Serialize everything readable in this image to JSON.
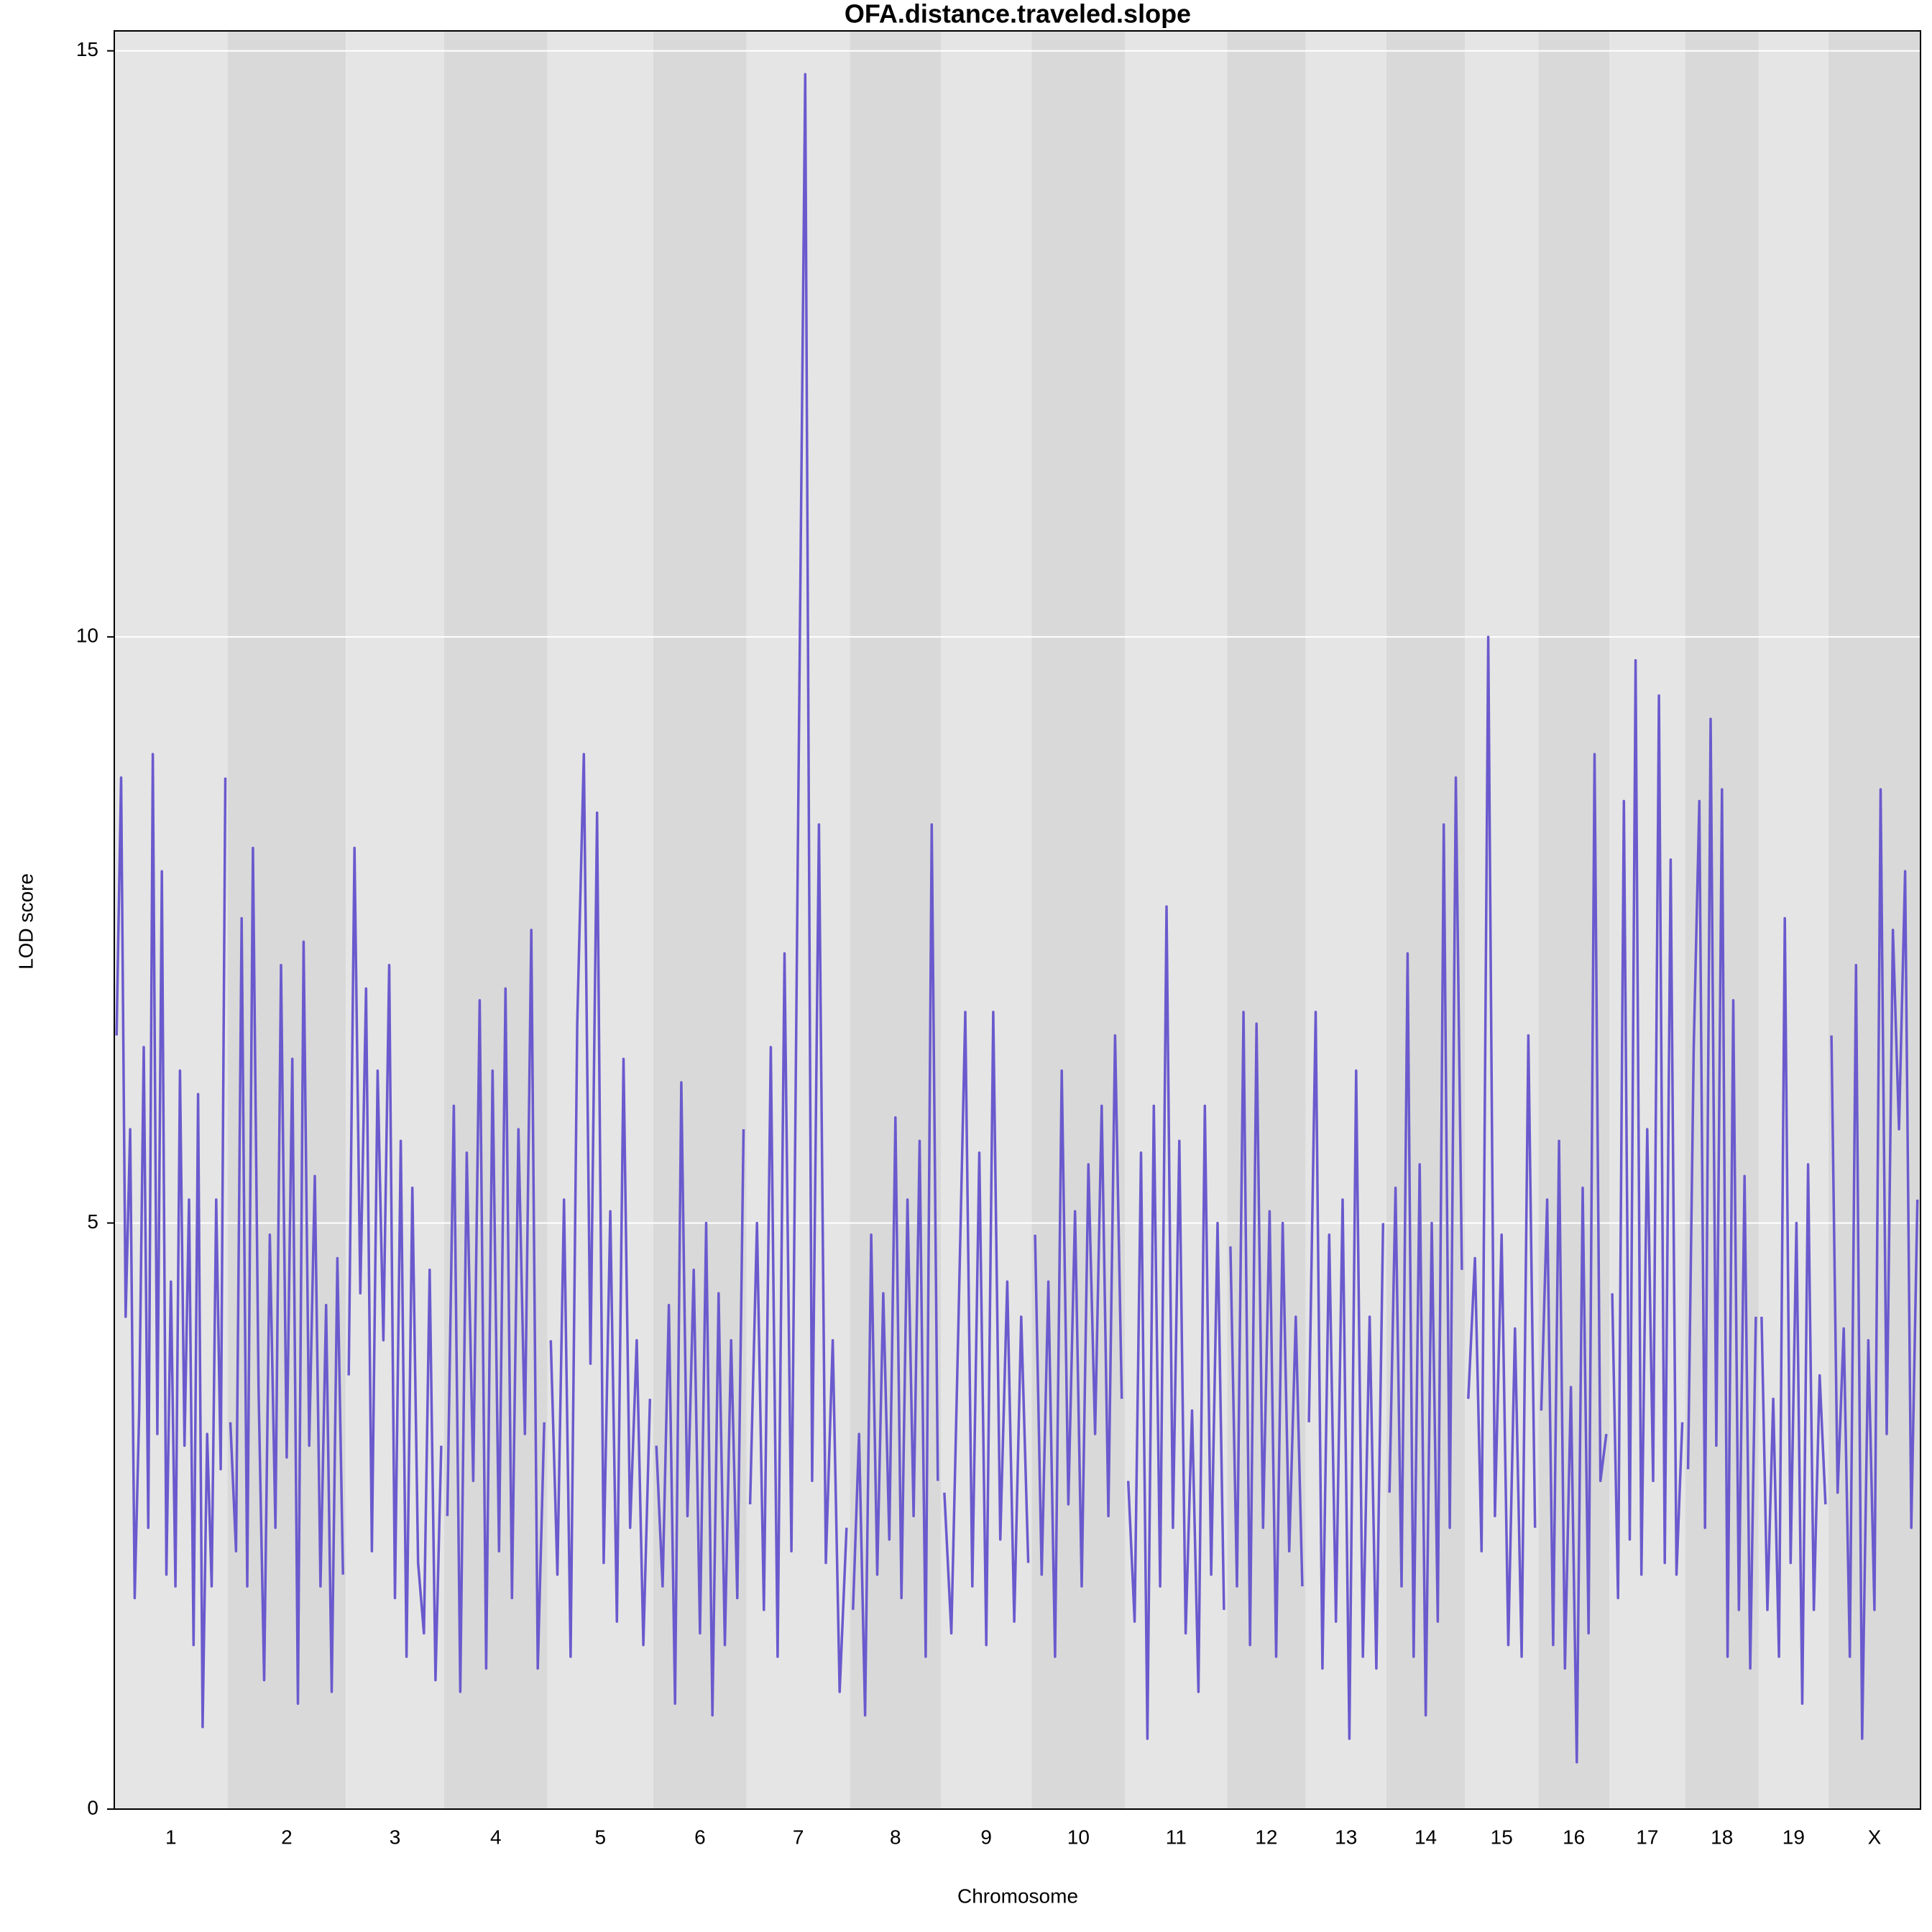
{
  "chart_data": {
    "type": "line",
    "title": "OFA.distance.traveled.slope",
    "xlabel": "Chromosome",
    "ylabel": "LOD score",
    "color": "#6a5acd",
    "band_colors": [
      "#e5e5e5",
      "#d9d9d9"
    ],
    "grid_color": "#ffffff",
    "ylim": [
      0,
      15.17
    ],
    "yticks": [
      0,
      5,
      10,
      15
    ],
    "grid": true,
    "series": [
      {
        "name": "1",
        "length": 91,
        "values": [
          6.6,
          8.8,
          4.2,
          5.8,
          1.8,
          3.4,
          6.5,
          2.4,
          9.0,
          3.2,
          8.0,
          2.0,
          4.5,
          1.9,
          6.3,
          3.1,
          5.2,
          1.4,
          6.1,
          0.7,
          3.2,
          1.9,
          5.2,
          2.9,
          8.8
        ]
      },
      {
        "name": "2",
        "length": 95,
        "values": [
          3.3,
          2.2,
          7.6,
          1.9,
          8.2,
          3.6,
          1.1,
          4.9,
          2.4,
          7.2,
          3.0,
          6.4,
          0.9,
          7.4,
          3.1,
          5.4,
          1.9,
          4.3,
          1.0,
          4.7,
          2.0
        ]
      },
      {
        "name": "3",
        "length": 79,
        "values": [
          3.7,
          8.2,
          4.4,
          7.0,
          2.2,
          6.3,
          4.0,
          7.2,
          1.8,
          5.7,
          1.3,
          5.3,
          2.1,
          1.5,
          4.6,
          1.1,
          3.1
        ]
      },
      {
        "name": "4",
        "length": 83,
        "values": [
          2.5,
          6.0,
          1.0,
          5.6,
          2.8,
          6.9,
          1.2,
          6.3,
          2.2,
          7.0,
          1.8,
          5.8,
          3.2,
          7.5,
          1.2,
          3.3
        ]
      },
      {
        "name": "5",
        "length": 85,
        "values": [
          4.0,
          2.0,
          5.2,
          1.3,
          6.7,
          9.0,
          3.8,
          8.5,
          2.1,
          5.1,
          1.6,
          6.4,
          2.4,
          4.0,
          1.4,
          3.5
        ]
      },
      {
        "name": "6",
        "length": 75,
        "values": [
          3.1,
          1.9,
          4.3,
          0.9,
          6.2,
          2.5,
          4.6,
          1.5,
          5.0,
          0.8,
          4.4,
          1.4,
          4.0,
          1.8,
          5.8
        ]
      },
      {
        "name": "7",
        "length": 83,
        "values": [
          2.6,
          5.0,
          1.7,
          6.5,
          1.3,
          7.3,
          2.2,
          8.6,
          14.8,
          2.8,
          8.4,
          2.1,
          4.0,
          1.0,
          2.4
        ]
      },
      {
        "name": "8",
        "length": 73,
        "values": [
          1.7,
          3.2,
          0.8,
          4.9,
          2.0,
          4.4,
          2.3,
          5.9,
          1.8,
          5.2,
          2.5,
          5.7,
          1.3,
          8.4,
          2.8
        ]
      },
      {
        "name": "9",
        "length": 73,
        "values": [
          2.7,
          1.5,
          4.1,
          6.8,
          1.9,
          5.6,
          1.4,
          6.8,
          2.3,
          4.5,
          1.6,
          4.2,
          2.1
        ]
      },
      {
        "name": "10",
        "length": 75,
        "values": [
          4.9,
          2.0,
          4.5,
          1.3,
          6.3,
          2.6,
          5.1,
          1.9,
          5.5,
          3.2,
          6.0,
          2.5,
          6.6,
          3.5
        ]
      },
      {
        "name": "11",
        "length": 82,
        "values": [
          2.8,
          1.6,
          5.6,
          0.6,
          6.0,
          1.9,
          7.7,
          2.4,
          5.7,
          1.5,
          3.4,
          1.0,
          6.0,
          2.0,
          5.0,
          1.7
        ]
      },
      {
        "name": "12",
        "length": 63,
        "values": [
          4.8,
          1.9,
          6.8,
          1.4,
          6.7,
          2.4,
          5.1,
          1.3,
          5.0,
          2.2,
          4.2,
          1.9
        ]
      },
      {
        "name": "13",
        "length": 65,
        "values": [
          3.3,
          6.8,
          1.2,
          4.9,
          1.6,
          5.2,
          0.6,
          6.3,
          1.3,
          4.2,
          1.2,
          5.0
        ]
      },
      {
        "name": "14",
        "length": 63,
        "values": [
          2.7,
          5.3,
          1.9,
          7.3,
          1.3,
          5.5,
          0.8,
          5.0,
          1.6,
          8.4,
          2.4,
          8.8,
          4.6
        ]
      },
      {
        "name": "15",
        "length": 59,
        "values": [
          3.5,
          4.7,
          2.2,
          10.0,
          2.5,
          4.9,
          1.4,
          4.1,
          1.3,
          6.6,
          2.4
        ]
      },
      {
        "name": "16",
        "length": 57,
        "values": [
          3.4,
          5.2,
          1.4,
          5.7,
          1.2,
          3.6,
          0.4,
          5.3,
          1.5,
          9.0,
          2.8,
          3.2
        ]
      },
      {
        "name": "17",
        "length": 61,
        "values": [
          4.4,
          1.8,
          8.6,
          2.3,
          9.8,
          2.0,
          5.8,
          2.8,
          9.5,
          2.1,
          8.1,
          2.0,
          3.3
        ]
      },
      {
        "name": "18",
        "length": 59,
        "values": [
          2.9,
          6.5,
          8.6,
          2.4,
          9.3,
          3.1,
          8.7,
          1.3,
          6.9,
          1.7,
          5.4,
          1.2,
          4.2
        ]
      },
      {
        "name": "19",
        "length": 56,
        "values": [
          4.2,
          1.7,
          3.5,
          1.3,
          7.6,
          2.1,
          5.0,
          0.9,
          5.5,
          1.7,
          3.7,
          2.6
        ]
      },
      {
        "name": "X",
        "length": 74,
        "values": [
          6.6,
          2.7,
          4.1,
          1.3,
          7.2,
          0.6,
          4.0,
          1.7,
          8.7,
          3.2,
          7.5,
          5.8,
          8.0,
          2.4,
          5.2
        ]
      }
    ]
  }
}
